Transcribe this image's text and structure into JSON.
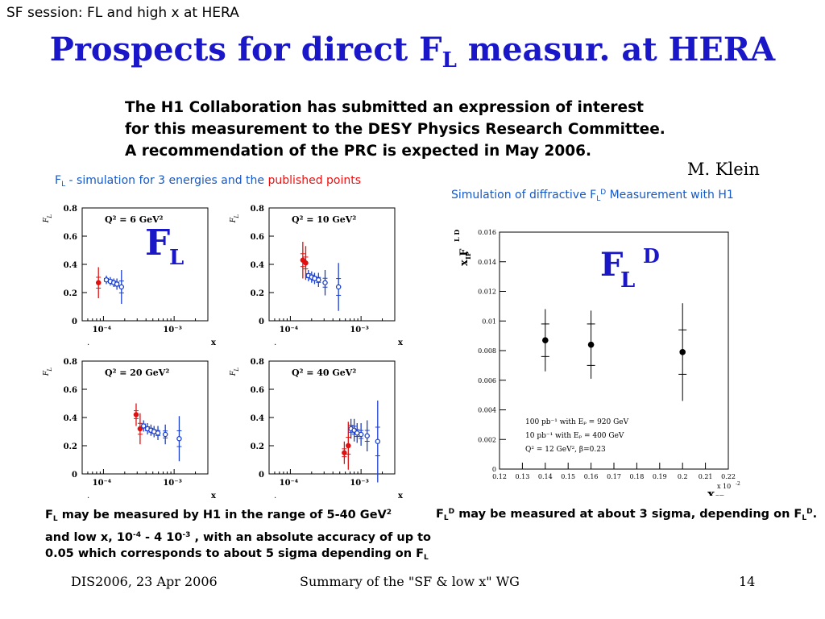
{
  "header": {
    "session": "SF session: FL and high x at HERA",
    "title_pre": "Prospects for direct F",
    "title_sub": "L",
    "title_post": " measur. at HERA"
  },
  "intro": {
    "line1": "The H1 Collaboration has submitted an expression of interest",
    "line2": "for this measurement to the DESY Physics Research Committee.",
    "line3": "A recommendation of the PRC is expected in May 2006."
  },
  "author": "M. Klein",
  "left_panel": {
    "caption_pre": "F",
    "caption_sub": "L",
    "caption_mid": " - simulation for 3 energies and the ",
    "caption_red": "published points",
    "overlay_label": "F",
    "overlay_sub": "L",
    "text_l1_pre": "F",
    "text_l1_sub": "L",
    "text_l1_mid": " may be measured by H1 in the range of 5-40 GeV",
    "text_l1_sup": "2",
    "text_l2_pre": "and low x, 10",
    "text_l2_sup1": "-4",
    "text_l2_mid": " - 4 10",
    "text_l2_sup2": "-3",
    "text_l2_post": " , with an absolute accuracy of up to",
    "text_l3_pre": "0.05 which corresponds to about 5 sigma depending on F",
    "text_l3_sub": "L"
  },
  "right_panel": {
    "caption_pre": "Simulation of diffractive F",
    "caption_sub": "L",
    "caption_sup": "D",
    "caption_post": " Measurement with H1",
    "overlay_label": "F",
    "overlay_sub": "L",
    "overlay_sup": "D",
    "text_pre": "F",
    "text_sub": "L",
    "text_sup": "D",
    "text_mid": " may be measured at about 3 sigma, depending on F",
    "text_sub2": "L",
    "text_sup2": "D",
    "text_post": "."
  },
  "footer": {
    "left": "DIS2006, 23 Apr 2006",
    "center": "Summary of  the \"SF & low x\" WG",
    "right": "14"
  },
  "colors": {
    "title": "#1a17c9",
    "caption": "#1558c8",
    "red_points": "#e11111",
    "blue_points": "#1a3fcf"
  },
  "chart_data": [
    {
      "type": "scatter",
      "panel": "Q2 = 6 GeV2",
      "label": "Q² = 6 GeV²",
      "ylabel": "F_L",
      "xlabel": "x",
      "xscale": "log",
      "xlim": [
        5e-05,
        0.003
      ],
      "ylim": [
        0,
        0.8
      ],
      "yticks": [
        "0",
        "0.2",
        "0.4",
        "0.6",
        "0.8"
      ],
      "xticks": [
        "10⁻⁴",
        "10⁻³"
      ],
      "series": [
        {
          "color": "#e11111",
          "filled": true,
          "x": [
            8.5e-05
          ],
          "y": [
            0.27
          ],
          "err": [
            0.11
          ]
        },
        {
          "color": "#1a3fcf",
          "filled": false,
          "x": [
            0.00011,
            0.000125,
            0.00014,
            0.000155,
            0.00018
          ],
          "y": [
            0.29,
            0.28,
            0.27,
            0.26,
            0.24
          ],
          "err": [
            0.03,
            0.03,
            0.03,
            0.04,
            0.12
          ]
        }
      ]
    },
    {
      "type": "scatter",
      "panel": "Q2 = 10 GeV2",
      "label": "Q² = 10 GeV²",
      "ylabel": "F_L",
      "xlabel": "x",
      "xscale": "log",
      "xlim": [
        5e-05,
        0.003
      ],
      "ylim": [
        0,
        0.8
      ],
      "yticks": [
        "0",
        "0.2",
        "0.4",
        "0.6",
        "0.8"
      ],
      "xticks": [
        "10⁻⁴",
        "10⁻³"
      ],
      "series": [
        {
          "color": "#e11111",
          "filled": true,
          "x": [
            0.00015,
            0.000165
          ],
          "y": [
            0.43,
            0.41
          ],
          "err": [
            0.13,
            0.12
          ]
        },
        {
          "color": "#1a3fcf",
          "filled": false,
          "x": [
            0.00018,
            0.0002,
            0.00022,
            0.00025,
            0.00031,
            0.00048
          ],
          "y": [
            0.32,
            0.31,
            0.3,
            0.29,
            0.27,
            0.24
          ],
          "err": [
            0.04,
            0.04,
            0.04,
            0.05,
            0.09,
            0.17
          ]
        }
      ]
    },
    {
      "type": "scatter",
      "panel": "Q2 = 20 GeV2",
      "label": "Q² = 20 GeV²",
      "ylabel": "F_L",
      "xlabel": "x",
      "xscale": "log",
      "xlim": [
        5e-05,
        0.003
      ],
      "ylim": [
        0,
        0.8
      ],
      "yticks": [
        "0",
        "0.2",
        "0.4",
        "0.6",
        "0.8"
      ],
      "xticks": [
        "10⁻⁴",
        "10⁻³"
      ],
      "series": [
        {
          "color": "#e11111",
          "filled": true,
          "x": [
            0.00029,
            0.00033
          ],
          "y": [
            0.42,
            0.32
          ],
          "err": [
            0.08,
            0.11
          ]
        },
        {
          "color": "#1a3fcf",
          "filled": false,
          "x": [
            0.00037,
            0.00042,
            0.00047,
            0.00052,
            0.00059,
            0.00075,
            0.00118
          ],
          "y": [
            0.34,
            0.32,
            0.31,
            0.3,
            0.29,
            0.28,
            0.25
          ],
          "err": [
            0.04,
            0.04,
            0.04,
            0.04,
            0.05,
            0.07,
            0.16
          ]
        }
      ]
    },
    {
      "type": "scatter",
      "panel": "Q2 = 40 GeV2",
      "label": "Q² = 40 GeV²",
      "ylabel": "F_L",
      "xlabel": "x",
      "xscale": "log",
      "xlim": [
        5e-05,
        0.003
      ],
      "ylim": [
        0,
        0.8
      ],
      "yticks": [
        "0",
        "0.2",
        "0.4",
        "0.6",
        "0.8"
      ],
      "xticks": [
        "10⁻⁴",
        "10⁻³"
      ],
      "series": [
        {
          "color": "#e11111",
          "filled": true,
          "x": [
            0.00058,
            0.00066
          ],
          "y": [
            0.15,
            0.2
          ],
          "err": [
            0.08,
            0.17
          ]
        },
        {
          "color": "#1a3fcf",
          "filled": false,
          "x": [
            0.00072,
            0.0008,
            0.00088,
            0.001,
            0.00122,
            0.00172
          ],
          "y": [
            0.32,
            0.31,
            0.29,
            0.28,
            0.27,
            0.23
          ],
          "err": [
            0.07,
            0.08,
            0.07,
            0.08,
            0.11,
            0.29
          ]
        }
      ]
    },
    {
      "type": "scatter",
      "panel": "diffractive FL^D",
      "ylabel": "x_IP F_L^D",
      "xlabel": "x_IP",
      "x_multiplier": "x 10^-2",
      "xlim": [
        0.0012,
        0.0022
      ],
      "ylim": [
        0,
        0.016
      ],
      "xticks": [
        "0.12",
        "0.13",
        "0.14",
        "0.15",
        "0.16",
        "0.17",
        "0.18",
        "0.19",
        "0.2",
        "0.21",
        "0.22"
      ],
      "yticks": [
        "0",
        "0.002",
        "0.004",
        "0.006",
        "0.008",
        "0.01",
        "0.012",
        "0.014",
        "0.016"
      ],
      "series": [
        {
          "color": "#000000",
          "filled": true,
          "x": [
            0.0014,
            0.0016,
            0.002
          ],
          "y": [
            0.0087,
            0.0084,
            0.0079
          ],
          "err_total": [
            0.0021,
            0.0023,
            0.0033
          ],
          "err_stat": [
            0.0011,
            0.0014,
            0.0015
          ]
        }
      ],
      "legend": [
        "100 pb⁻¹ with Eₚ = 920 GeV",
        "10 pb⁻¹ with Eₚ = 400 GeV",
        "Q² = 12 GeV², β=0.23"
      ]
    }
  ]
}
